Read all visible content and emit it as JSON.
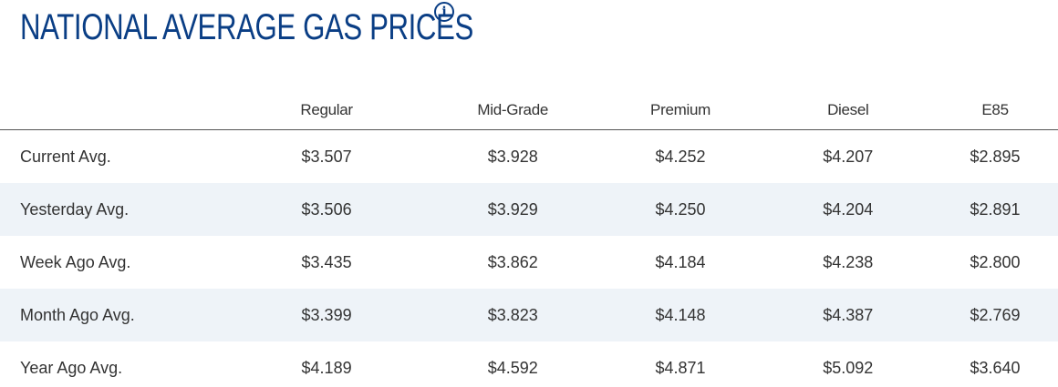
{
  "header": {
    "title": "NATIONAL AVERAGE GAS PRICES",
    "info_icon": "info-icon",
    "accent_color": "#0a3e85"
  },
  "table": {
    "columns": [
      "Regular",
      "Mid-Grade",
      "Premium",
      "Diesel",
      "E85"
    ],
    "rows": [
      {
        "label": "Current Avg.",
        "values": [
          "$3.507",
          "$3.928",
          "$4.252",
          "$4.207",
          "$2.895"
        ]
      },
      {
        "label": "Yesterday Avg.",
        "values": [
          "$3.506",
          "$3.929",
          "$4.250",
          "$4.204",
          "$2.891"
        ]
      },
      {
        "label": "Week Ago Avg.",
        "values": [
          "$3.435",
          "$3.862",
          "$4.184",
          "$4.238",
          "$2.800"
        ]
      },
      {
        "label": "Month Ago Avg.",
        "values": [
          "$3.399",
          "$3.823",
          "$4.148",
          "$4.387",
          "$2.769"
        ]
      },
      {
        "label": "Year Ago Avg.",
        "values": [
          "$4.189",
          "$4.592",
          "$4.871",
          "$5.092",
          "$3.640"
        ]
      }
    ],
    "stripe_color": "#eef3f8"
  }
}
